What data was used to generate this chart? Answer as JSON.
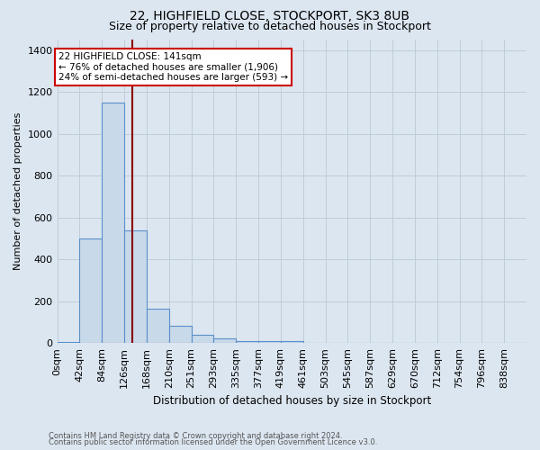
{
  "title1": "22, HIGHFIELD CLOSE, STOCKPORT, SK3 8UB",
  "title2": "Size of property relative to detached houses in Stockport",
  "xlabel": "Distribution of detached houses by size in Stockport",
  "ylabel": "Number of detached properties",
  "footnote1": "Contains HM Land Registry data © Crown copyright and database right 2024.",
  "footnote2": "Contains public sector information licensed under the Open Government Licence v3.0.",
  "bar_labels": [
    "0sqm",
    "42sqm",
    "84sqm",
    "126sqm",
    "168sqm",
    "210sqm",
    "251sqm",
    "293sqm",
    "335sqm",
    "377sqm",
    "419sqm",
    "461sqm",
    "503sqm",
    "545sqm",
    "587sqm",
    "629sqm",
    "670sqm",
    "712sqm",
    "754sqm",
    "796sqm",
    "838sqm"
  ],
  "bar_values": [
    5,
    500,
    1150,
    540,
    165,
    85,
    38,
    22,
    12,
    8,
    12,
    0,
    0,
    0,
    0,
    0,
    0,
    0,
    0,
    0,
    0
  ],
  "bar_color": "#c8d9ea",
  "bar_edge_color": "#5b8fc9",
  "grid_color": "#c0ccd8",
  "background_color": "#dce6f0",
  "vline_color": "#8b0000",
  "annotation_title": "22 HIGHFIELD CLOSE: 141sqm",
  "annotation_line1": "← 76% of detached houses are smaller (1,906)",
  "annotation_line2": "24% of semi-detached houses are larger (593) →",
  "annotation_box_facecolor": "#ffffff",
  "annotation_box_edgecolor": "#cc0000",
  "ylim": [
    0,
    1450
  ],
  "yticks": [
    0,
    200,
    400,
    600,
    800,
    1000,
    1200,
    1400
  ],
  "bin_width": 42,
  "vline_x_data": 141
}
